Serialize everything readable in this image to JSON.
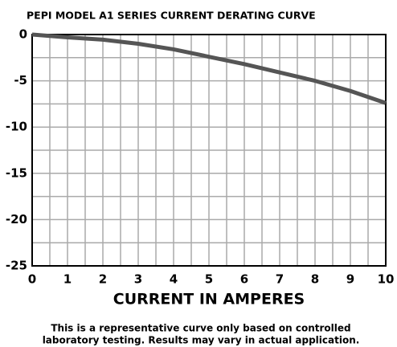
{
  "chart_data": {
    "type": "line",
    "title": "PEPI MODEL A1 SERIES CURRENT DERATING CURVE",
    "x_label": "CURRENT IN AMPERES",
    "note": [
      "This is a representative curve only based on controlled",
      "laboratory testing. Results may vary in actual application."
    ],
    "x": [
      0,
      1,
      2,
      3,
      4,
      5,
      6,
      7,
      8,
      9,
      10
    ],
    "series": [
      {
        "color": "#555555",
        "values": [
          0,
          -0.3,
          -0.55,
          -1,
          -1.6,
          -2.4,
          -3.2,
          -4.1,
          -5,
          -6.1,
          -7.4
        ]
      }
    ],
    "xlim": [
      0,
      10
    ],
    "xticks": [
      0,
      1,
      2,
      3,
      4,
      5,
      6,
      7,
      8,
      9,
      10
    ],
    "ylim": [
      -25,
      0
    ],
    "yticks": [
      0,
      -5,
      -10,
      -15,
      -20,
      -25
    ],
    "grid": true
  }
}
